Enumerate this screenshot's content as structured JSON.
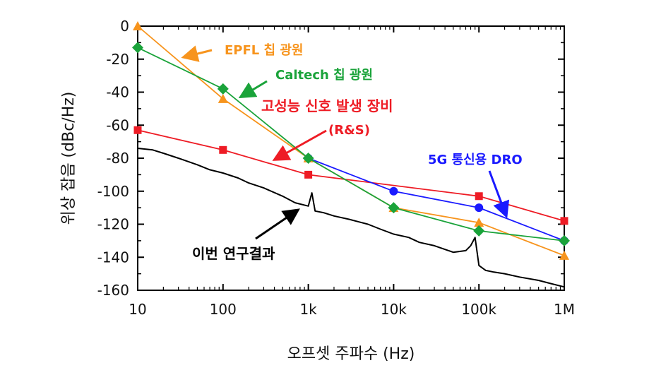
{
  "chart_data": {
    "type": "line",
    "title": "",
    "xlabel": "오프셋 주파수 (Hz)",
    "ylabel": "위상 잡음 (dBc/Hz)",
    "xscale": "log",
    "xlim": [
      10,
      1000000
    ],
    "ylim": [
      -160,
      0
    ],
    "x_tick_values": [
      10,
      100,
      1000,
      10000,
      100000,
      1000000
    ],
    "x_tick_labels": [
      "10",
      "100",
      "1k",
      "10k",
      "100k",
      "1M"
    ],
    "y_ticks": [
      0,
      -20,
      -40,
      -60,
      -80,
      -100,
      -120,
      -140,
      -160
    ],
    "grid": false,
    "series": [
      {
        "key": "rs",
        "name": "고성능 신호 발생 장비",
        "name_line2": "(R&S)",
        "color": "#ee1c25",
        "marker": "square",
        "x": [
          10,
          100,
          1000,
          100000,
          1000000
        ],
        "y": [
          -63,
          -75,
          -90,
          -103,
          -118
        ]
      },
      {
        "key": "dro",
        "name": "5G 통신용 DRO",
        "color": "#1a1aff",
        "marker": "circle",
        "x": [
          1000,
          10000,
          100000,
          1000000
        ],
        "y": [
          -80,
          -100,
          -110,
          -130
        ]
      },
      {
        "key": "epfl",
        "name": "EPFL 칩 광원",
        "color": "#f7941d",
        "marker": "triangle",
        "x": [
          10,
          100,
          1000,
          10000,
          100000,
          1000000
        ],
        "y": [
          0,
          -44,
          -80,
          -110,
          -119,
          -139
        ]
      },
      {
        "key": "caltech",
        "name": "Caltech 칩 광원",
        "color": "#1aa33a",
        "marker": "diamond",
        "x": [
          10,
          100,
          1000,
          10000,
          100000,
          1000000
        ],
        "y": [
          -13,
          -38,
          -80,
          -110,
          -124,
          -130
        ]
      },
      {
        "key": "this",
        "name": "이번 연구결과",
        "color": "#000000",
        "marker": "none",
        "x": [
          10,
          15,
          20,
          30,
          50,
          70,
          100,
          150,
          200,
          300,
          500,
          700,
          1000,
          1100,
          1200,
          1500,
          2000,
          3000,
          5000,
          7000,
          10000,
          15000,
          20000,
          30000,
          50000,
          70000,
          80000,
          90000,
          100000,
          120000,
          150000,
          200000,
          300000,
          500000,
          700000,
          1000000
        ],
        "y": [
          -74,
          -75,
          -77,
          -80,
          -84,
          -87,
          -89,
          -92,
          -95,
          -98,
          -103,
          -107,
          -109,
          -101,
          -112,
          -113,
          -115,
          -117,
          -120,
          -123,
          -126,
          -128,
          -131,
          -133,
          -137,
          -136,
          -133,
          -128,
          -145,
          -148,
          -149,
          -150,
          -152,
          -154,
          -156,
          -158
        ]
      }
    ]
  }
}
